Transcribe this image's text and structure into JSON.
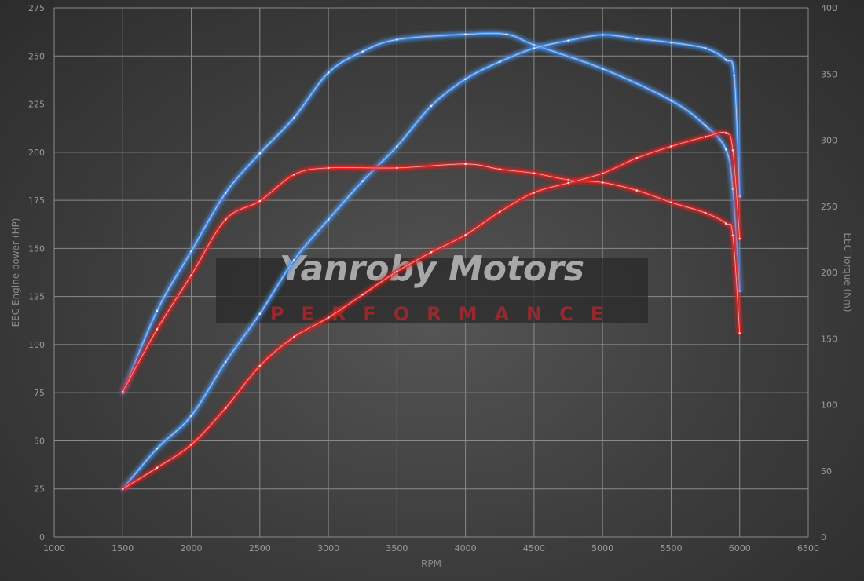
{
  "chart_data": {
    "type": "line",
    "title": "",
    "xlabel": "RPM",
    "ylabel": "EEC Engine power (HP)",
    "y2label": "EEC Torque (Nm)",
    "xlim": [
      1000,
      6500
    ],
    "ylim": [
      0,
      275
    ],
    "y2lim": [
      0,
      400
    ],
    "xticks": [
      1000,
      1500,
      2000,
      2500,
      3000,
      3500,
      4000,
      4500,
      5000,
      5500,
      6000,
      6500
    ],
    "yticks": [
      0,
      25,
      50,
      75,
      100,
      125,
      150,
      175,
      200,
      225,
      250,
      275
    ],
    "y2ticks": [
      0,
      50,
      100,
      150,
      200,
      250,
      300,
      350,
      400
    ],
    "grid": true,
    "watermark": {
      "line1": "Yanroby Motors",
      "line2": "PERFORMANCE"
    },
    "series": [
      {
        "axis": "right",
        "color": "#4a90e8",
        "x": [
          1500,
          1750,
          2000,
          2250,
          2500,
          2750,
          3000,
          3250,
          3500,
          4000,
          4300,
          4500,
          5000,
          5500,
          5750,
          5900,
          5950,
          6000
        ],
        "values": [
          109,
          171,
          216,
          260,
          290,
          317,
          351,
          367,
          376,
          380,
          380,
          372,
          354,
          330,
          311,
          293,
          263,
          186
        ]
      },
      {
        "axis": "left",
        "color": "#4a90e8",
        "x": [
          1500,
          1750,
          2000,
          2250,
          2500,
          2750,
          3000,
          3250,
          3500,
          3750,
          4000,
          4250,
          4500,
          4750,
          5000,
          5250,
          5500,
          5750,
          5900,
          5960,
          6000
        ],
        "values": [
          25,
          46,
          63,
          91,
          116,
          144,
          165,
          185,
          203,
          224,
          238,
          247,
          254,
          258,
          261,
          259,
          257,
          254,
          248,
          240,
          177
        ]
      },
      {
        "axis": "right",
        "color": "#e02828",
        "x": [
          1500,
          1750,
          2000,
          2250,
          2500,
          2750,
          3000,
          3500,
          4000,
          4250,
          4500,
          4750,
          5000,
          5250,
          5500,
          5750,
          5900,
          5950,
          6000
        ],
        "values": [
          110,
          157,
          198,
          240,
          254,
          274,
          279,
          279,
          282,
          278,
          275,
          270,
          268,
          262,
          253,
          245,
          237,
          228,
          154
        ]
      },
      {
        "axis": "left",
        "color": "#e02828",
        "x": [
          1500,
          1750,
          2000,
          2250,
          2500,
          2750,
          3000,
          3250,
          3500,
          3750,
          4000,
          4250,
          4500,
          4750,
          5000,
          5250,
          5500,
          5750,
          5900,
          5950,
          6000
        ],
        "values": [
          25,
          36,
          48,
          67,
          89,
          104,
          114,
          126,
          138,
          148,
          157,
          169,
          179,
          184,
          189,
          197,
          203,
          208,
          210,
          201,
          155
        ]
      }
    ]
  }
}
